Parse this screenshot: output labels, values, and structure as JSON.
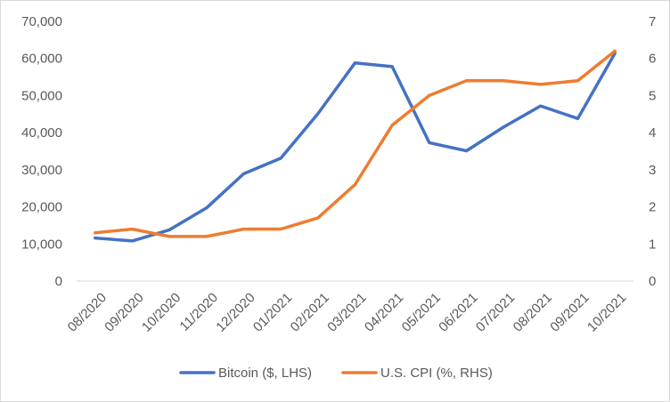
{
  "chart_data": {
    "type": "line",
    "categories": [
      "08/2020",
      "09/2020",
      "10/2020",
      "11/2020",
      "12/2020",
      "01/2021",
      "02/2021",
      "03/2021",
      "04/2021",
      "05/2021",
      "06/2021",
      "07/2021",
      "08/2021",
      "09/2021",
      "10/2021"
    ],
    "series": [
      {
        "name": "Bitcoin ($, LHS)",
        "axis": "left",
        "color": "#4472C4",
        "values": [
          11600,
          10800,
          13800,
          19700,
          28900,
          33100,
          45100,
          58800,
          57800,
          37300,
          35100,
          41500,
          47200,
          43800,
          61400
        ]
      },
      {
        "name": "U.S. CPI (%, RHS)",
        "axis": "right",
        "color": "#ED7D31",
        "values": [
          1.3,
          1.4,
          1.2,
          1.2,
          1.4,
          1.4,
          1.7,
          2.6,
          4.2,
          5.0,
          5.4,
          5.4,
          5.3,
          5.4,
          6.2
        ]
      }
    ],
    "ylim_left": [
      0,
      70000
    ],
    "ylim_right": [
      0,
      7
    ],
    "yticks_left": [
      "0",
      "10,000",
      "20,000",
      "30,000",
      "40,000",
      "50,000",
      "60,000",
      "70,000"
    ],
    "yticks_right": [
      "0",
      "1",
      "2",
      "3",
      "4",
      "5",
      "6",
      "7"
    ],
    "legend_position": "bottom",
    "grid": false
  }
}
